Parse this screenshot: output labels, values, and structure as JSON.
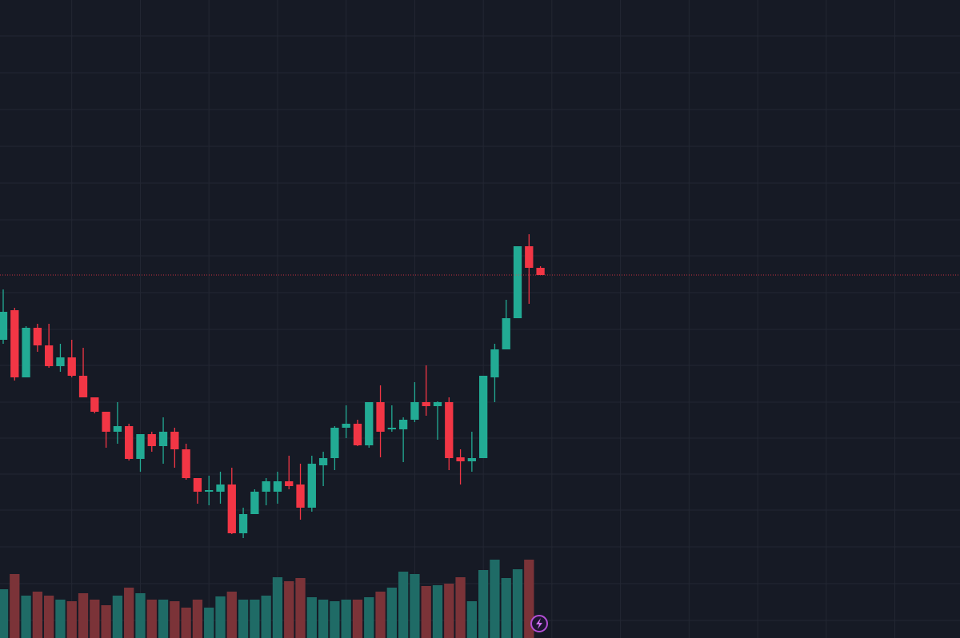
{
  "chart_data": {
    "type": "candlestick",
    "x": [
      0,
      1,
      2,
      3,
      4,
      5,
      6,
      7,
      8,
      9,
      10,
      11,
      12,
      13,
      14,
      15,
      16,
      17,
      18,
      19,
      20,
      21,
      22,
      23,
      24,
      25,
      26,
      27,
      28,
      29,
      30,
      31,
      32,
      33,
      34,
      35,
      36,
      37,
      38,
      39,
      40,
      41,
      42,
      43,
      44,
      45,
      46,
      47
    ],
    "open": [
      375,
      412,
      328,
      390,
      368,
      342,
      353,
      330,
      303,
      285,
      260,
      267,
      226,
      257,
      242,
      260,
      238,
      202,
      185,
      185,
      194,
      133,
      157,
      185,
      185,
      198,
      194,
      165,
      218,
      227,
      265,
      270,
      243,
      297,
      263,
      263,
      275,
      297,
      292,
      297,
      228,
      223,
      227,
      328,
      363,
      402,
      492,
      465
    ],
    "high": [
      438,
      415,
      392,
      395,
      395,
      370,
      375,
      365,
      303,
      285,
      297,
      270,
      257,
      260,
      278,
      265,
      245,
      202,
      205,
      210,
      215,
      165,
      188,
      202,
      210,
      230,
      220,
      230,
      235,
      267,
      293,
      275,
      297,
      318,
      293,
      278,
      322,
      343,
      298,
      303,
      238,
      260,
      330,
      370,
      425,
      492,
      507,
      467
    ],
    "low": [
      370,
      324,
      328,
      360,
      340,
      335,
      328,
      303,
      283,
      240,
      245,
      224,
      210,
      235,
      220,
      215,
      200,
      170,
      168,
      170,
      132,
      127,
      157,
      168,
      170,
      188,
      150,
      160,
      192,
      212,
      252,
      242,
      240,
      228,
      260,
      222,
      272,
      280,
      250,
      212,
      194,
      210,
      227,
      297,
      363,
      402,
      420,
      456
    ],
    "close": [
      410,
      328,
      390,
      368,
      342,
      353,
      330,
      303,
      285,
      260,
      267,
      226,
      257,
      242,
      260,
      238,
      202,
      185,
      187,
      194,
      133,
      157,
      185,
      198,
      198,
      192,
      165,
      220,
      227,
      265,
      270,
      243,
      297,
      260,
      265,
      275,
      297,
      292,
      297,
      227,
      223,
      227,
      330,
      363,
      402,
      492,
      465,
      456
    ],
    "volume": [
      61,
      80,
      53,
      58,
      53,
      48,
      46,
      56,
      48,
      41,
      53,
      63,
      56,
      48,
      48,
      46,
      38,
      48,
      38,
      52,
      58,
      48,
      48,
      53,
      76,
      71,
      75,
      51,
      48,
      46,
      48,
      48,
      51,
      58,
      63,
      83,
      80,
      65,
      66,
      68,
      76,
      46,
      85,
      98,
      75,
      86,
      98,
      null
    ],
    "up_color": "#22ab94",
    "down_color": "#f23645",
    "volume_up_color": "#1f6b66",
    "volume_down_color": "#7b3338",
    "last_price": 456,
    "last_price_color": "#f23645",
    "xlim": [
      -0.28,
      83.7
    ],
    "ylim": [
      2,
      800
    ],
    "volume_ylim": [
      0,
      798
    ],
    "xticks": [
      6,
      12,
      18,
      24,
      30,
      36,
      42,
      48,
      54,
      60,
      66,
      72,
      78
    ],
    "yticks": [
      755,
      709,
      663,
      617,
      571,
      525,
      480,
      434,
      388,
      343,
      297,
      252,
      207,
      162,
      116,
      70,
      24
    ],
    "grid": true
  }
}
